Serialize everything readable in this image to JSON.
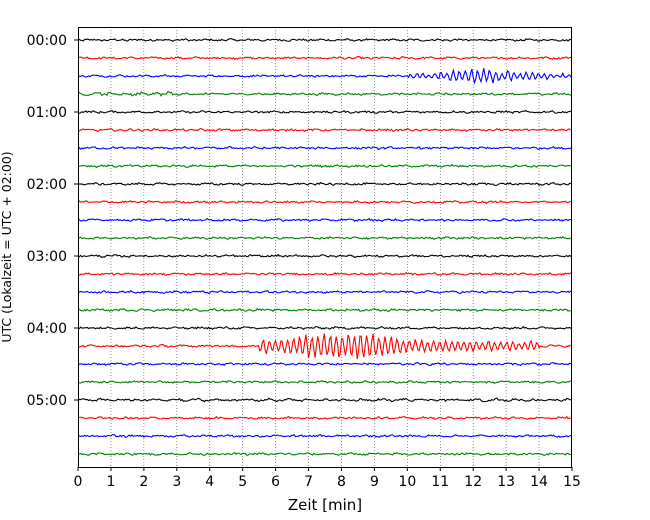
{
  "chart_data": {
    "type": "line",
    "xlabel": "Zeit  [min]",
    "ylabel": "UTC (Lokalzeit = UTC + 02:00)",
    "xlim": [
      0,
      15
    ],
    "x_ticks": [
      "0",
      "1",
      "2",
      "3",
      "4",
      "5",
      "6",
      "7",
      "8",
      "9",
      "10",
      "11",
      "12",
      "13",
      "14",
      "15"
    ],
    "y_tick_labels": [
      "00:00",
      "01:00",
      "02:00",
      "03:00",
      "04:00",
      "05:00"
    ],
    "y_tick_rows": [
      0,
      4,
      8,
      12,
      16,
      20
    ],
    "trace_interval_minutes": 15,
    "trace_count": 24,
    "grid": "vertical dotted",
    "trace_colors": [
      "#000000",
      "#ff0000",
      "#0000ff",
      "#008000"
    ],
    "events": [
      {
        "trace_start": "00:30",
        "x_start": 10.0,
        "x_end": 15.0,
        "peak_minute": 12.2,
        "relative_amplitude": 1.0
      },
      {
        "trace_start": "04:15",
        "x_start": 5.5,
        "x_end": 14.0,
        "peak_minute": 8.0,
        "relative_amplitude": 1.9
      }
    ]
  }
}
